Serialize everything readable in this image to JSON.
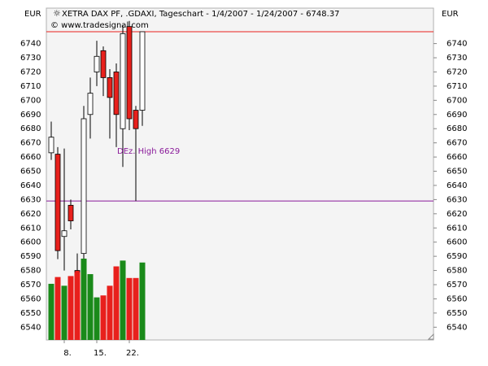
{
  "chart_data": {
    "type": "candlestick",
    "title": "XETRA DAX PF, .GDAXI, Tageschart - 1/4/2007 - 1/24/2007 - 6748.37",
    "subtitle": "© www.tradesignal.com",
    "y_unit": "EUR",
    "categories": [
      null,
      null,
      "8.",
      null,
      null,
      null,
      null,
      "15.",
      null,
      null,
      null,
      null,
      "22.",
      null,
      null
    ],
    "open": [
      6663,
      6662,
      6604,
      6626,
      6580,
      6592,
      6690,
      6720,
      6735,
      6716,
      6720,
      6680,
      6752,
      6693,
      6693
    ],
    "high": [
      6685,
      6667,
      6666,
      6630,
      6592,
      6696,
      6716,
      6742,
      6738,
      6722,
      6726,
      6753,
      6756,
      6696,
      6748
    ],
    "low": [
      6658,
      6588,
      6580,
      6609,
      6565,
      6585,
      6673,
      6710,
      6703,
      6673,
      6667,
      6653,
      6679,
      6629,
      6682
    ],
    "close": [
      6674,
      6594,
      6608,
      6615,
      6568,
      6687,
      6705,
      6731,
      6716,
      6702,
      6690,
      6747,
      6687,
      6680,
      6748.37
    ],
    "up_color": "#ffffff",
    "down_color": "#e8201c",
    "volume": [
      58,
      65,
      56,
      66,
      70,
      84,
      68,
      44,
      46,
      56,
      76,
      82,
      64,
      64,
      80
    ],
    "volume_up_color": "#1a8a1a",
    "volume_down_color": "#e8201c",
    "ylim": [
      6531,
      6765
    ],
    "yticks": [
      6540,
      6550,
      6560,
      6570,
      6580,
      6590,
      6600,
      6610,
      6620,
      6630,
      6640,
      6650,
      6660,
      6670,
      6680,
      6690,
      6700,
      6710,
      6720,
      6730,
      6740
    ],
    "hlines": [
      {
        "value": 6748.37,
        "color": "#e8201c"
      },
      {
        "value": 6629,
        "color": "#8a1a9a",
        "label": "DEz. High 6629"
      }
    ]
  }
}
